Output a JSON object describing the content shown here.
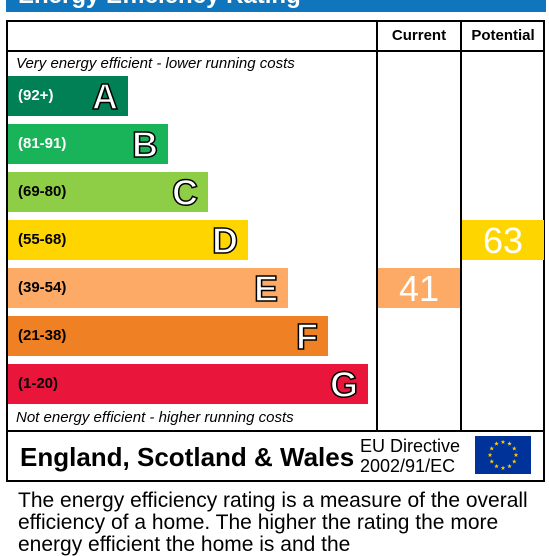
{
  "title": "Energy Efficiency Rating",
  "columns": {
    "current": "Current",
    "potential": "Potential"
  },
  "notes": {
    "top": "Very energy efficient - lower running costs",
    "bottom": "Not energy efficient - higher running costs"
  },
  "chart_data": {
    "type": "bar",
    "title": "Energy Efficiency Rating",
    "categories": [
      "A",
      "B",
      "C",
      "D",
      "E",
      "F",
      "G"
    ],
    "bands": [
      {
        "letter": "A",
        "range": "(92+)",
        "min": 92,
        "max": 100,
        "color": "#008054"
      },
      {
        "letter": "B",
        "range": "(81-91)",
        "min": 81,
        "max": 91,
        "color": "#19b459"
      },
      {
        "letter": "C",
        "range": "(69-80)",
        "min": 69,
        "max": 80,
        "color": "#8dce46"
      },
      {
        "letter": "D",
        "range": "(55-68)",
        "min": 55,
        "max": 68,
        "color": "#ffd500"
      },
      {
        "letter": "E",
        "range": "(39-54)",
        "min": 39,
        "max": 54,
        "color": "#fcaa65"
      },
      {
        "letter": "F",
        "range": "(21-38)",
        "min": 21,
        "max": 38,
        "color": "#ef8023"
      },
      {
        "letter": "G",
        "range": "(1-20)",
        "min": 1,
        "max": 20,
        "color": "#e9153b"
      }
    ],
    "current": {
      "value": 41,
      "band": "E"
    },
    "potential": {
      "value": 63,
      "band": "D"
    }
  },
  "footer": {
    "region": "England, Scotland & Wales",
    "directive_line1": "EU Directive",
    "directive_line2": "2002/91/EC",
    "flag_color": "#003399",
    "star_color": "#ffcc00"
  },
  "description": "The energy efficiency rating is a measure of the overall efficiency of a home. The higher the rating the more energy efficient the home is and the"
}
